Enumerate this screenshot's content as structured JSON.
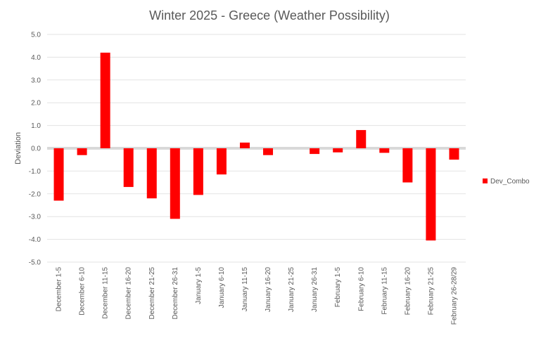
{
  "chart_data": {
    "type": "bar",
    "title": "Winter 2025 - Greece (Weather Possibility)",
    "xlabel": "",
    "ylabel": "Deviation",
    "ylim": [
      -5,
      5
    ],
    "yticks": [
      5,
      4,
      3,
      2,
      1,
      0,
      -1,
      -2,
      -3,
      -4,
      -5
    ],
    "ytick_labels": [
      "5.0",
      "4.0",
      "3.0",
      "2.0",
      "1.0",
      "0.0",
      "-1.0",
      "-2.0",
      "-3.0",
      "-4.0",
      "-5.0"
    ],
    "grid": true,
    "legend_position": "right",
    "categories": [
      "December 1-5",
      "December 6-10",
      "December 11-15",
      "December 16-20",
      "December 21-25",
      "December 26-31",
      "January 1-5",
      "January 6-10",
      "January 11-15",
      "January 16-20",
      "January 21-25",
      "January 26-31",
      "February 1-5",
      "February 6-10",
      "February 11-15",
      "February 16-20",
      "February 21-25",
      "February 26-28/29"
    ],
    "series": [
      {
        "name": "Dev_Combo",
        "color": "#ff0000",
        "values": [
          -2.3,
          -0.3,
          4.2,
          -1.7,
          -2.2,
          -3.1,
          -2.05,
          -1.15,
          0.25,
          -0.3,
          0.0,
          -0.25,
          -0.18,
          0.8,
          -0.2,
          -1.5,
          -4.05,
          -0.5
        ]
      }
    ]
  }
}
